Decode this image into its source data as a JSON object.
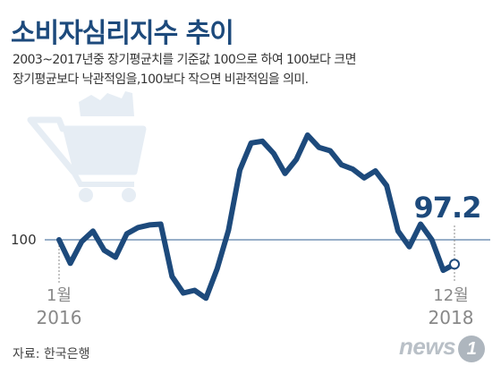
{
  "title": "소비자심리지수 추이",
  "subtitle_lines": [
    "2003~2017년중 장기평균치를 기준값 100으로 하여 100보다 크면",
    "장기평균보다 낙관적임을,100보다 작으면 비관적임을 의미."
  ],
  "source": "자료: 한국은행",
  "logo": {
    "text": "news",
    "mark": "1"
  },
  "colors": {
    "line": "#1d4a7c",
    "baseline": "#5a7fa8",
    "icon": "#e6edf4",
    "title": "#1d4a7c"
  },
  "decor_icon": "shopping-cart-icon",
  "chart_data": {
    "type": "line",
    "title": "",
    "xlabel": "",
    "ylabel": "",
    "start_label": {
      "month": "1월",
      "year": "2016"
    },
    "end_label": {
      "month": "12월",
      "year": "2018"
    },
    "reference_line": {
      "value": 100,
      "label": "100"
    },
    "last_value_label": "97.2",
    "ylim": [
      90,
      110
    ],
    "grid": false,
    "series": [
      {
        "values": [
          100.0,
          97.3,
          99.8,
          101.0,
          98.8,
          98.0,
          100.7,
          101.4,
          101.7,
          101.8,
          95.8,
          93.9,
          94.2,
          93.3,
          96.7,
          101.1,
          108.0,
          111.1,
          111.3,
          109.9,
          107.6,
          109.2,
          112.0,
          110.6,
          110.2,
          108.6,
          108.1,
          107.1,
          107.9,
          106.2,
          101.0,
          99.2,
          101.8,
          100.0,
          96.5,
          97.2
        ]
      }
    ]
  }
}
